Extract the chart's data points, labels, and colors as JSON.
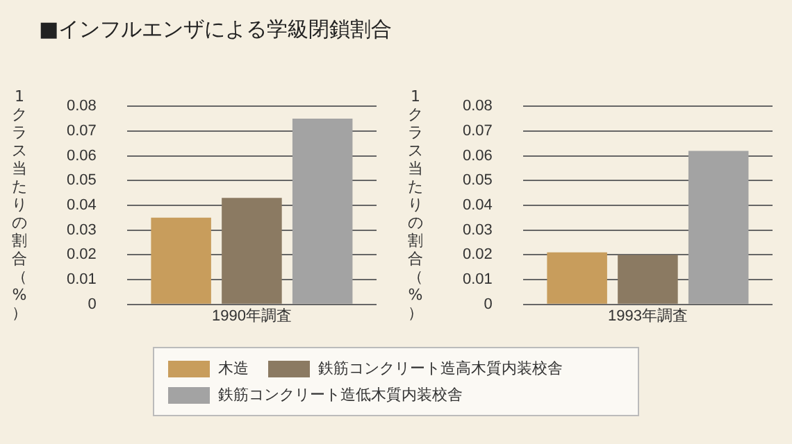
{
  "chart_data": [
    {
      "type": "bar",
      "title": "■インフルエンザによる学級閉鎖割合",
      "xlabel": "1990年調査",
      "ylabel": "1クラス当たりの割合（%）",
      "categories": [
        null
      ],
      "series": [
        {
          "name": "木造",
          "color": "#c89d5c",
          "values": [
            0.035
          ]
        },
        {
          "name": "鉄筋コンクリート造高木質内装校舎",
          "color": "#8b7a62",
          "values": [
            0.043
          ]
        },
        {
          "name": "鉄筋コンクリート造低木質内装校舎",
          "color": "#a3a3a3",
          "values": [
            0.075
          ]
        }
      ],
      "ylim": [
        0,
        0.08
      ],
      "yticks": [
        0,
        0.01,
        0.02,
        0.03,
        0.04,
        0.05,
        0.06,
        0.07,
        0.08
      ],
      "grid": "y",
      "legend": "bottom"
    },
    {
      "type": "bar",
      "xlabel": "1993年調査",
      "ylabel": "1クラス当たりの割合（%）",
      "categories": [
        null
      ],
      "series": [
        {
          "color": "#c89d5c",
          "values": [
            0.021
          ]
        },
        {
          "color": "#8b7a62",
          "values": [
            0.02
          ]
        },
        {
          "color": "#a3a3a3",
          "values": [
            0.062
          ]
        }
      ],
      "ylim": [
        0,
        0.08
      ],
      "yticks": [
        0,
        0.01,
        0.02,
        0.03,
        0.04,
        0.05,
        0.06,
        0.07,
        0.08
      ],
      "grid": "y"
    }
  ]
}
